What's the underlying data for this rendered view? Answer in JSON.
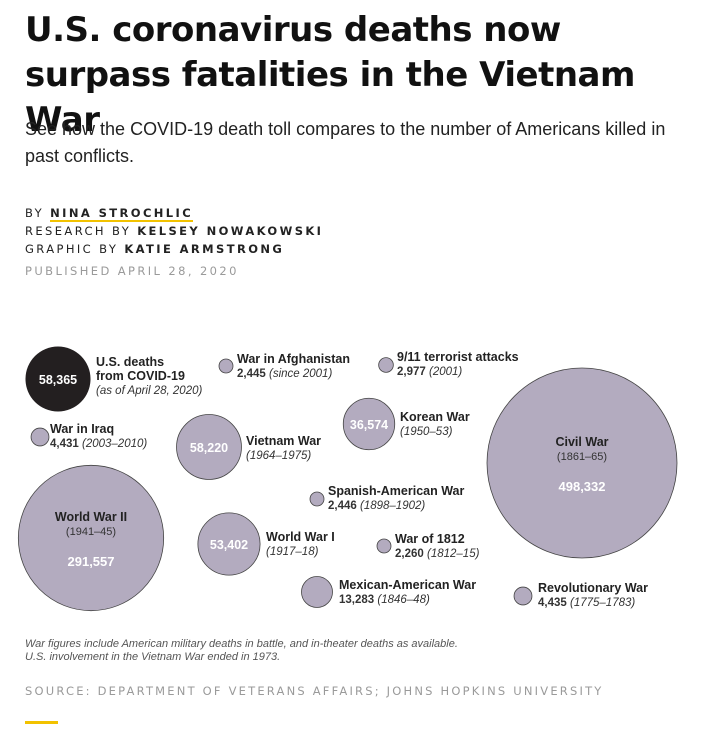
{
  "header": {
    "title": "U.S. coronavirus deaths now surpass fatalities in the Vietnam War",
    "subtitle": "See how the COVID-19 death toll compares to the number of Americans killed in past conflicts."
  },
  "credits": {
    "by_label": "BY",
    "by_name": "NINA STROCHLIC",
    "research_label": "RESEARCH BY",
    "research_name": "KELSEY NOWAKOWSKI",
    "graphic_label": "GRAPHIC BY",
    "graphic_name": "KATIE ARMSTRONG",
    "published": "PUBLISHED APRIL 28, 2020"
  },
  "colors": {
    "covid": "#231f20",
    "war": "#b3abbf",
    "bubble_stroke": "#444444",
    "accent": "#f2c200"
  },
  "chart_data": {
    "type": "bubble",
    "items": [
      {
        "name_lines": [
          "U.S. deaths",
          "from COVID-19"
        ],
        "value": 58365,
        "value_label": "58,365",
        "detail": "(as of April 28, 2020)",
        "highlight": true
      },
      {
        "name_lines": [
          "War in Afghanistan"
        ],
        "value": 2445,
        "value_label": "2,445",
        "detail": "(since 2001)"
      },
      {
        "name_lines": [
          "9/11 terrorist attacks"
        ],
        "value": 2977,
        "value_label": "2,977",
        "detail": "(2001)"
      },
      {
        "name_lines": [
          "War in Iraq"
        ],
        "value": 4431,
        "value_label": "4,431",
        "detail": "(2003–2010)"
      },
      {
        "name_lines": [
          "Vietnam War"
        ],
        "value": 58220,
        "value_label": "58,220",
        "detail": "(1964–1975)"
      },
      {
        "name_lines": [
          "Korean War"
        ],
        "value": 36574,
        "value_label": "36,574",
        "detail": "(1950–53)"
      },
      {
        "name_lines": [
          "Civil War"
        ],
        "value": 498332,
        "value_label": "498,332",
        "detail": "(1861–65)"
      },
      {
        "name_lines": [
          "Spanish-American War"
        ],
        "value": 2446,
        "value_label": "2,446",
        "detail": "(1898–1902)"
      },
      {
        "name_lines": [
          "World War II"
        ],
        "value": 291557,
        "value_label": "291,557",
        "detail": "(1941–45)"
      },
      {
        "name_lines": [
          "World War I"
        ],
        "value": 53402,
        "value_label": "53,402",
        "detail": "(1917–18)"
      },
      {
        "name_lines": [
          "War of 1812"
        ],
        "value": 2260,
        "value_label": "2,260",
        "detail": "(1812–15)"
      },
      {
        "name_lines": [
          "Mexican-American War"
        ],
        "value": 13283,
        "value_label": "13,283",
        "detail": "(1846–48)"
      },
      {
        "name_lines": [
          "Revolutionary War"
        ],
        "value": 4435,
        "value_label": "4,435",
        "detail": "(1775–1783)"
      }
    ]
  },
  "notes": {
    "line1": "War figures include American military deaths in battle, and in-theater deaths as available.",
    "line2": "U.S. involvement in the Vietnam War ended in 1973."
  },
  "source": "SOURCE: DEPARTMENT OF VETERANS AFFAIRS; JOHNS HOPKINS UNIVERSITY"
}
